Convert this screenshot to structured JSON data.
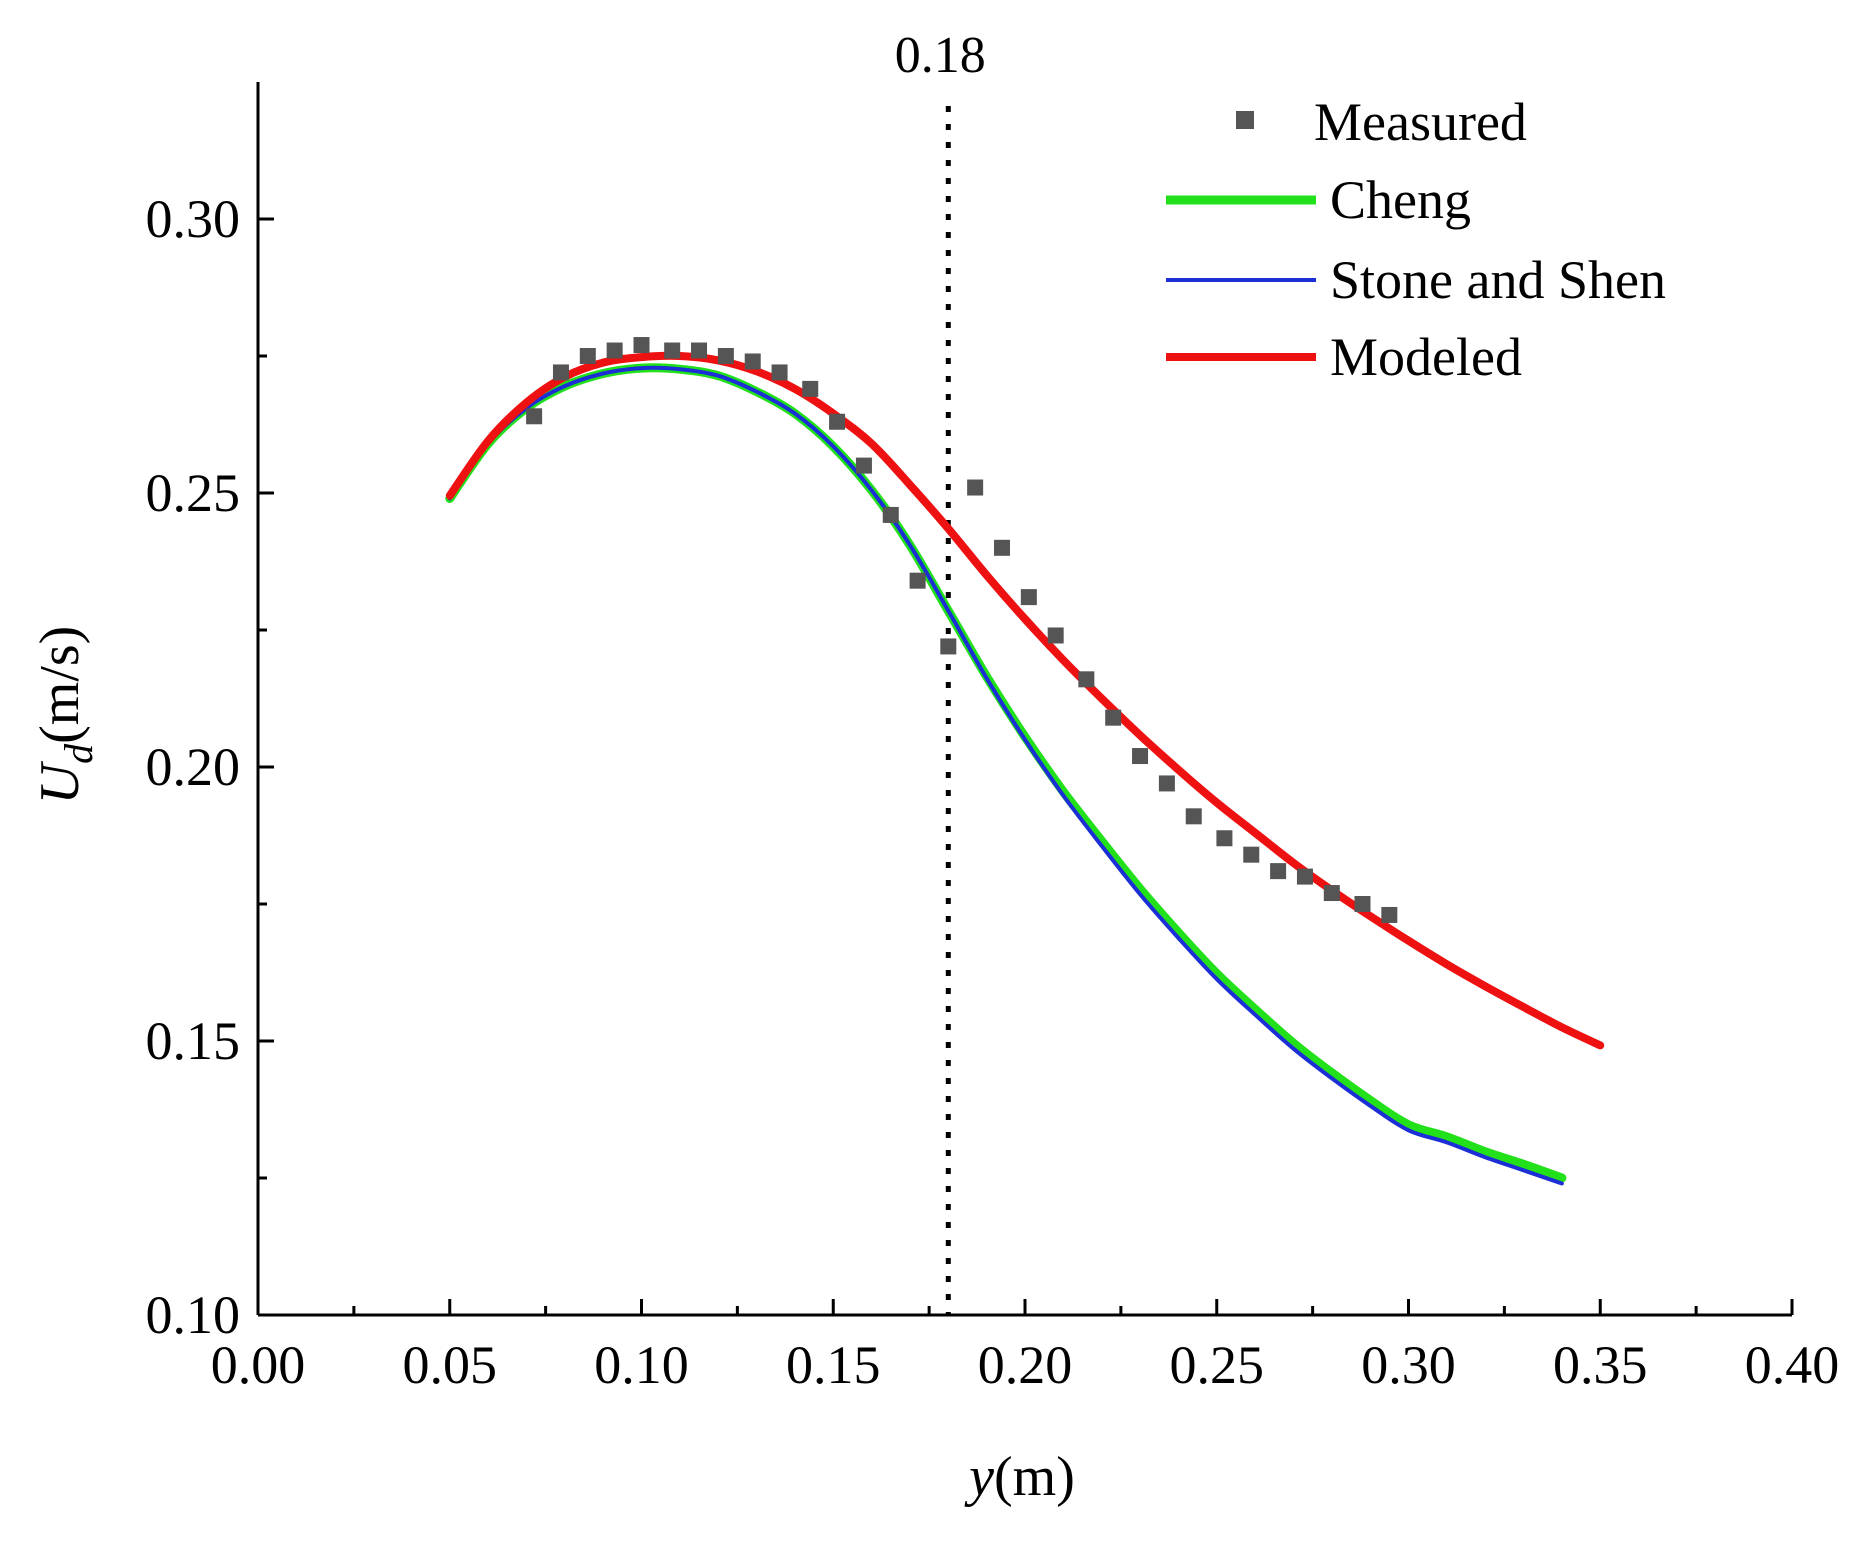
{
  "chart_data": {
    "type": "line",
    "title": "",
    "xlabel": {
      "var": "y",
      "unit": "(m)"
    },
    "ylabel": {
      "var": "U",
      "sub": "d",
      "unit": "(m/s)"
    },
    "xlim": [
      0.0,
      0.4
    ],
    "ylim": [
      0.1,
      0.325
    ],
    "xticks": [
      0.0,
      0.05,
      0.1,
      0.15,
      0.2,
      0.25,
      0.3,
      0.35,
      0.4
    ],
    "xtick_labels": [
      "0.00",
      "0.05",
      "0.10",
      "0.15",
      "0.20",
      "0.25",
      "0.30",
      "0.35",
      "0.40"
    ],
    "yticks": [
      0.1,
      0.15,
      0.2,
      0.25,
      0.3
    ],
    "ytick_labels": [
      "0.10",
      "0.15",
      "0.20",
      "0.25",
      "0.30"
    ],
    "grid": false,
    "legend_position": "top-right",
    "reference_line": {
      "x": 0.18,
      "label": "0.18",
      "style": "dotted"
    },
    "series": [
      {
        "name": "Measured",
        "kind": "scatter",
        "color": "#555555",
        "x": [
          0.072,
          0.079,
          0.086,
          0.093,
          0.1,
          0.108,
          0.115,
          0.122,
          0.129,
          0.136,
          0.144,
          0.151,
          0.158,
          0.165,
          0.172,
          0.18,
          0.187,
          0.194,
          0.201,
          0.208,
          0.216,
          0.223,
          0.23,
          0.237,
          0.244,
          0.252,
          0.259,
          0.266,
          0.273,
          0.28,
          0.288,
          0.295
        ],
        "y": [
          0.264,
          0.272,
          0.275,
          0.276,
          0.277,
          0.276,
          0.276,
          0.275,
          0.274,
          0.272,
          0.269,
          0.263,
          0.255,
          0.246,
          0.234,
          0.222,
          0.251,
          0.24,
          0.231,
          0.224,
          0.216,
          0.209,
          0.202,
          0.197,
          0.191,
          0.187,
          0.184,
          0.181,
          0.18,
          0.177,
          0.175,
          0.173
        ]
      },
      {
        "name": "Cheng",
        "kind": "line",
        "color": "#22e01a",
        "x": [
          0.05,
          0.06,
          0.07,
          0.08,
          0.09,
          0.1,
          0.11,
          0.12,
          0.13,
          0.14,
          0.15,
          0.16,
          0.17,
          0.18,
          0.19,
          0.2,
          0.21,
          0.22,
          0.23,
          0.24,
          0.25,
          0.26,
          0.27,
          0.28,
          0.29,
          0.3,
          0.31,
          0.32,
          0.33,
          0.34
        ],
        "y": [
          0.249,
          0.259,
          0.2655,
          0.2695,
          0.2718,
          0.2728,
          0.2726,
          0.2714,
          0.2685,
          0.2645,
          0.2585,
          0.2505,
          0.2405,
          0.2285,
          0.2165,
          0.2055,
          0.1955,
          0.1865,
          0.1778,
          0.1698,
          0.1623,
          0.1558,
          0.1496,
          0.1442,
          0.1392,
          0.1347,
          0.1325,
          0.1298,
          0.1275,
          0.125
        ]
      },
      {
        "name": "Stone and Shen",
        "kind": "line",
        "color": "#1c2fd6",
        "x": [
          0.05,
          0.06,
          0.07,
          0.08,
          0.09,
          0.1,
          0.11,
          0.12,
          0.13,
          0.14,
          0.15,
          0.16,
          0.17,
          0.18,
          0.19,
          0.2,
          0.21,
          0.22,
          0.23,
          0.24,
          0.25,
          0.26,
          0.27,
          0.28,
          0.29,
          0.3,
          0.31,
          0.32,
          0.33,
          0.34
        ],
        "y": [
          0.249,
          0.259,
          0.2655,
          0.2695,
          0.2718,
          0.2728,
          0.2726,
          0.2714,
          0.2685,
          0.2645,
          0.2585,
          0.2505,
          0.2405,
          0.2285,
          0.2162,
          0.205,
          0.1948,
          0.1856,
          0.1768,
          0.1688,
          0.1613,
          0.1548,
          0.1486,
          0.1432,
          0.1382,
          0.1337,
          0.1315,
          0.1288,
          0.1264,
          0.124
        ]
      },
      {
        "name": "Modeled",
        "kind": "line",
        "color": "#ee1111",
        "x": [
          0.05,
          0.06,
          0.07,
          0.08,
          0.09,
          0.1,
          0.11,
          0.12,
          0.13,
          0.14,
          0.15,
          0.16,
          0.17,
          0.18,
          0.19,
          0.2,
          0.21,
          0.22,
          0.23,
          0.24,
          0.25,
          0.26,
          0.27,
          0.28,
          0.29,
          0.3,
          0.31,
          0.32,
          0.33,
          0.34,
          0.35
        ],
        "y": [
          0.2495,
          0.2595,
          0.2665,
          0.2712,
          0.2738,
          0.2748,
          0.275,
          0.2742,
          0.2722,
          0.269,
          0.2645,
          0.259,
          0.2515,
          0.2435,
          0.235,
          0.227,
          0.2195,
          0.2125,
          0.2058,
          0.1995,
          0.1935,
          0.188,
          0.1825,
          0.1775,
          0.1728,
          0.1683,
          0.164,
          0.16,
          0.1562,
          0.1525,
          0.1492
        ]
      }
    ]
  }
}
